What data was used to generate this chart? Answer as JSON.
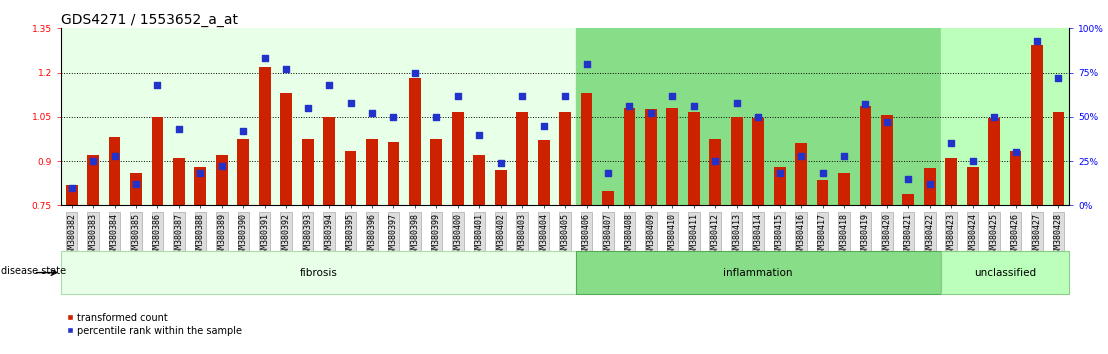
{
  "title": "GDS4271 / 1553652_a_at",
  "samples": [
    "GSM380382",
    "GSM380383",
    "GSM380384",
    "GSM380385",
    "GSM380386",
    "GSM380387",
    "GSM380388",
    "GSM380389",
    "GSM380390",
    "GSM380391",
    "GSM380392",
    "GSM380393",
    "GSM380394",
    "GSM380395",
    "GSM380396",
    "GSM380397",
    "GSM380398",
    "GSM380399",
    "GSM380400",
    "GSM380401",
    "GSM380402",
    "GSM380403",
    "GSM380404",
    "GSM380405",
    "GSM380406",
    "GSM380407",
    "GSM380408",
    "GSM380409",
    "GSM380410",
    "GSM380411",
    "GSM380412",
    "GSM380413",
    "GSM380414",
    "GSM380415",
    "GSM380416",
    "GSM380417",
    "GSM380418",
    "GSM380419",
    "GSM380420",
    "GSM380421",
    "GSM380422",
    "GSM380423",
    "GSM380424",
    "GSM380425",
    "GSM380426",
    "GSM380427",
    "GSM380428"
  ],
  "bar_values": [
    0.82,
    0.92,
    0.98,
    0.86,
    1.05,
    0.91,
    0.88,
    0.92,
    0.975,
    1.22,
    1.13,
    0.975,
    1.05,
    0.935,
    0.975,
    0.965,
    1.18,
    0.975,
    1.065,
    0.92,
    0.87,
    1.065,
    0.97,
    1.065,
    1.13,
    0.8,
    1.08,
    1.075,
    1.08,
    1.065,
    0.975,
    1.05,
    1.045,
    0.88,
    0.96,
    0.835,
    0.86,
    1.085,
    1.055,
    0.79,
    0.875,
    0.91,
    0.88,
    1.045,
    0.935,
    1.295,
    1.065
  ],
  "dot_values_pct": [
    10,
    25,
    28,
    12,
    68,
    43,
    18,
    22,
    42,
    83,
    77,
    55,
    68,
    58,
    52,
    50,
    75,
    50,
    62,
    40,
    24,
    62,
    45,
    62,
    80,
    18,
    56,
    52,
    62,
    56,
    25,
    58,
    50,
    18,
    28,
    18,
    28,
    57,
    47,
    15,
    12,
    35,
    25,
    50,
    30,
    93,
    72
  ],
  "groups": [
    {
      "name": "fibrosis",
      "start": 0,
      "end": 23,
      "facecolor": "#e8ffe8",
      "edgecolor": "#aaddaa"
    },
    {
      "name": "inflammation",
      "start": 24,
      "end": 40,
      "facecolor": "#88dd88",
      "edgecolor": "#55aa55"
    },
    {
      "name": "unclassified",
      "start": 41,
      "end": 46,
      "facecolor": "#bbffbb",
      "edgecolor": "#88cc88"
    }
  ],
  "ylim_left": [
    0.75,
    1.35
  ],
  "ylim_right": [
    0,
    100
  ],
  "yticks_left": [
    0.75,
    0.9,
    1.05,
    1.2,
    1.35
  ],
  "yticks_right": [
    0,
    25,
    50,
    75,
    100
  ],
  "bar_color": "#cc2200",
  "dot_color": "#2233cc",
  "title_fontsize": 10,
  "tick_fontsize": 6.5
}
